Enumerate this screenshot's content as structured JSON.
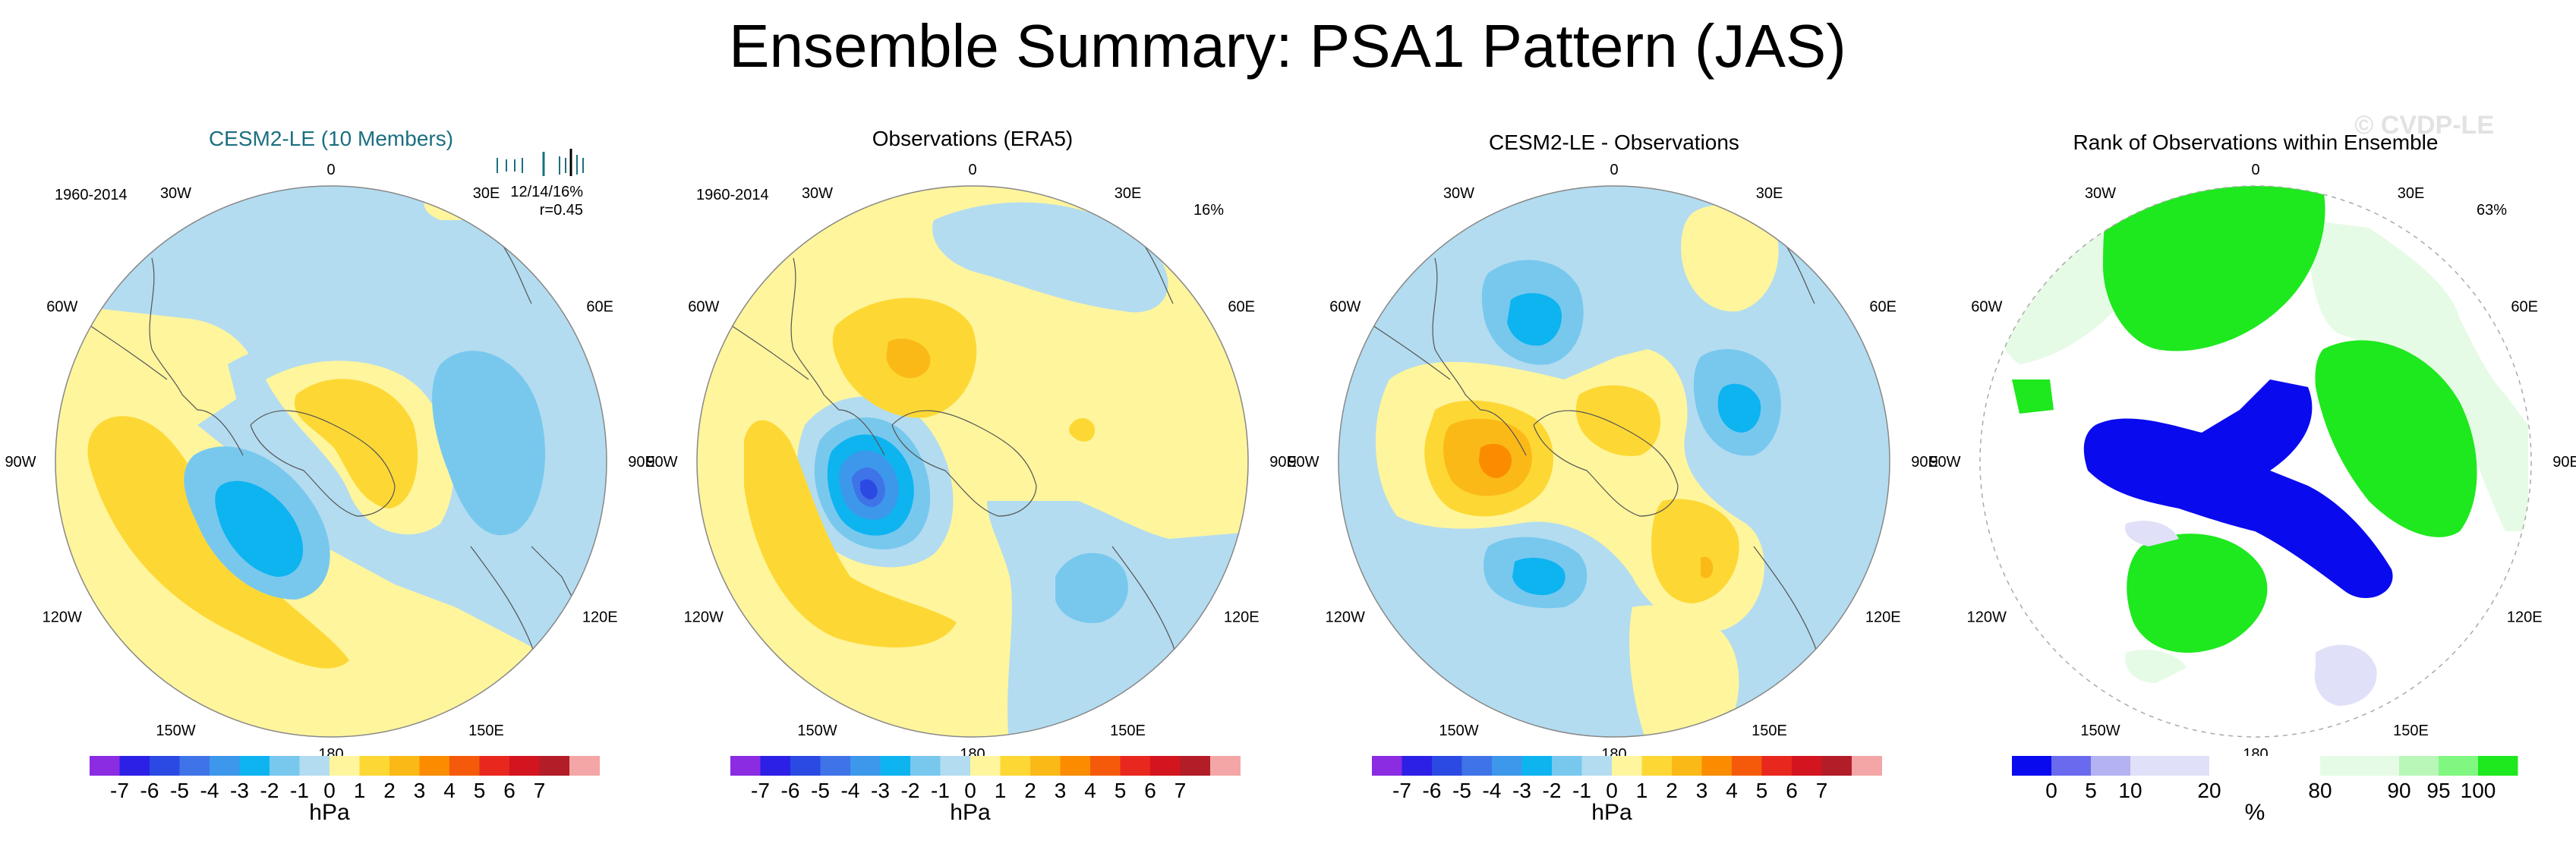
{
  "title": "Ensemble Summary: PSA1 Pattern (JAS)",
  "watermark": "© CVDP-LE",
  "panels": [
    {
      "title": "CESM2-LE (10 Members)",
      "title_color": "#1c6f80",
      "period": "1960-2014",
      "stats_line1": "12/14/16%",
      "stats_line2": "r=0.45",
      "pct": "",
      "colorbar": "diverging"
    },
    {
      "title": "Observations (ERA5)",
      "title_color": "#000000",
      "period": "1960-2014",
      "stats_line1": "",
      "stats_line2": "",
      "pct": "16%",
      "colorbar": "diverging"
    },
    {
      "title": "CESM2-LE - Observations",
      "title_color": "#000000",
      "period": "",
      "stats_line1": "",
      "stats_line2": "",
      "pct": "",
      "colorbar": "diverging"
    },
    {
      "title": "Rank of Observations within Ensemble",
      "title_color": "#000000",
      "period": "",
      "stats_line1": "",
      "stats_line2": "",
      "pct": "63%",
      "colorbar": "rank"
    }
  ],
  "lon_labels": {
    "n0": "0",
    "n30e": "30E",
    "n60e": "60E",
    "n90e": "90E",
    "n120e": "120E",
    "n150e": "150E",
    "n180": "180",
    "n150w": "150W",
    "n120w": "120W",
    "n90w": "90W",
    "n60w": "60W",
    "n30w": "30W"
  },
  "diverging_colorbar": {
    "colors": [
      "#8b2be2",
      "#2c1fe6",
      "#2b4ae3",
      "#3f73e8",
      "#3d97eb",
      "#0db4f0",
      "#78c8ee",
      "#b3dcf0",
      "#fff59d",
      "#fdd835",
      "#fbb917",
      "#fb8c00",
      "#f45a0a",
      "#e8281e",
      "#d2151e",
      "#b21d28",
      "#f4a6a6"
    ],
    "ticks": [
      "-7",
      "-6",
      "-5",
      "-4",
      "-3",
      "-2",
      "-1",
      "0",
      "1",
      "2",
      "3",
      "4",
      "5",
      "6",
      "7"
    ],
    "unit": "hPa"
  },
  "rank_colorbar": {
    "colors": [
      "#0a0aee",
      "#6a6aee",
      "#b3b3f2",
      "#e0e0f8",
      "#ffffff",
      "#e6fbe6",
      "#b8f7b8",
      "#80f780",
      "#1ee81e"
    ],
    "ticks": [
      "0",
      "5",
      "10",
      "20",
      "80",
      "90",
      "95",
      "100"
    ],
    "unit": "%"
  },
  "legend_palette": {
    "pos_light": "#fff59d",
    "pos_mid": "#fdd835",
    "pos_strong": "#fbb917",
    "pos_stronger": "#fb8c00",
    "neg_light": "#b3dcf0",
    "neg_mid": "#78c8ee",
    "neg_strong": "#0db4f0",
    "neg_stronger": "#3d97eb",
    "neg_deep": "#3f73e8",
    "neg_deepest": "#2b4ae3",
    "rank_high": "#1ee81e",
    "rank_low": "#0a0aee",
    "rank_lowmid": "#e0e0f8",
    "rank_highmid": "#e6fbe6"
  }
}
